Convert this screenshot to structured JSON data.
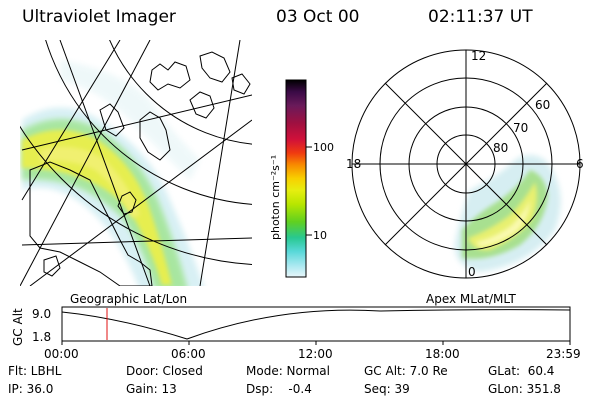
{
  "header": {
    "instrument": "Ultraviolet Imager",
    "date": "03 Oct 00",
    "time": "02:11:37 UT"
  },
  "geo_panel": {
    "label": "Geographic Lat/Lon"
  },
  "colorbar": {
    "label": "photon cm⁻²s⁻¹",
    "ticks": [
      "100",
      "10"
    ],
    "colors": [
      "#000000",
      "#3a0a46",
      "#6a1a5a",
      "#a01040",
      "#d0103a",
      "#f03a10",
      "#f88a00",
      "#f8d000",
      "#e6ee10",
      "#b8e600",
      "#60d020",
      "#28c890",
      "#58d8d8",
      "#a8e8f0",
      "#d8f4f8"
    ]
  },
  "polar_panel": {
    "label": "Apex MLat/MLT",
    "lat_labels": [
      "60",
      "70",
      "80"
    ],
    "mlt_labels": [
      "12",
      "18",
      "6",
      "0"
    ]
  },
  "timeline": {
    "ylabel": "GC Alt",
    "yticks": [
      "9.0",
      "1.8"
    ],
    "xticks": [
      "00:00",
      "06:00",
      "12:00",
      "18:00",
      "23:59"
    ]
  },
  "info": {
    "flt": "Flt: LBHL",
    "ip": "IP: 36.0",
    "door": "Door: Closed",
    "gain": "Gain: 13",
    "mode": "Mode: Normal",
    "dsp": "Dsp:    -0.4",
    "gcalt": "GC Alt: 7.0 Re",
    "seq": "Seq: 39",
    "glat": "GLat:  60.4",
    "glon": "GLon: 351.8"
  }
}
